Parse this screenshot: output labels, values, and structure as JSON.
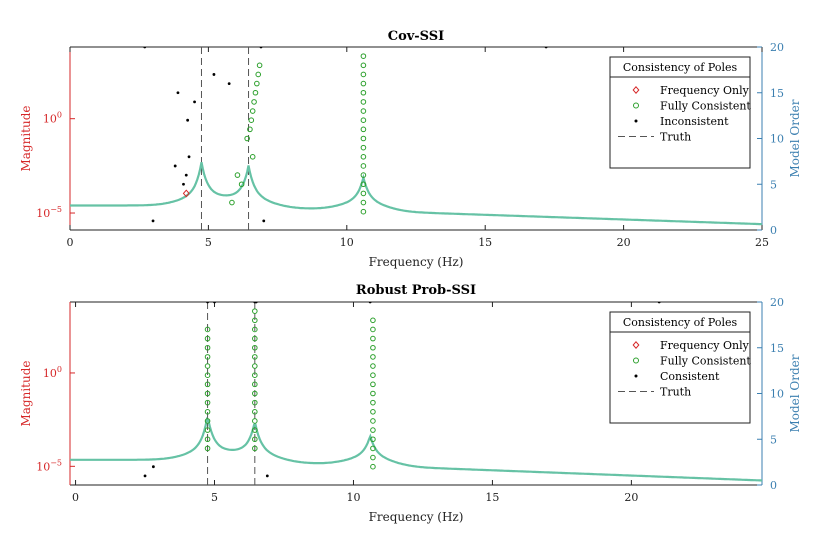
{
  "colors": {
    "left_axis": "#d62728",
    "right_axis": "#3b7fb0",
    "curve": "#66c2a5",
    "freq_only": "#d62728",
    "fully_consistent": "#2ca02c",
    "points": "#000000",
    "truth": "#555555"
  },
  "chart_data": [
    {
      "type": "scatter",
      "title": "Cov-SSI",
      "xlabel": "Frequency (Hz)",
      "ylabel_left": "Magnitude",
      "ylabel_right": "Model Order",
      "xlim": [
        0,
        25
      ],
      "ylim_right": [
        0,
        20
      ],
      "x_ticks": [
        "0",
        "5",
        "10",
        "15",
        "20",
        "25"
      ],
      "x_tick_values": [
        0,
        5,
        10,
        15,
        20,
        25
      ],
      "right_ticks": [
        "0",
        "5",
        "10",
        "15",
        "20"
      ],
      "right_tick_values": [
        0,
        5,
        10,
        15,
        20
      ],
      "left_ticks": [
        {
          "base": "10",
          "exp": "0",
          "log": 0
        },
        {
          "base": "10",
          "exp": "−5",
          "log": -5
        }
      ],
      "ylim_left_log": [
        -5.9,
        3.8
      ],
      "truth_freqs": [
        4.75,
        6.45
      ],
      "magnitude_curve": {
        "baseline_log": -4.6,
        "tail_log": -5.7,
        "peaks": [
          [
            4.75,
            -2.8
          ],
          [
            6.45,
            -2.9
          ],
          [
            10.6,
            -3.3
          ]
        ]
      },
      "legend": {
        "title": "Consistency of Poles",
        "entries": [
          "Frequency Only",
          "Fully Consistent",
          "Inconsistent",
          "Truth"
        ]
      },
      "series": [
        {
          "name": "Frequency Only",
          "marker": "diamond",
          "points": [
            [
              4.2,
              4
            ]
          ]
        },
        {
          "name": "Fully Consistent",
          "marker": "circle",
          "points": [
            [
              5.85,
              3
            ],
            [
              6.05,
              6
            ],
            [
              6.2,
              5
            ],
            [
              6.4,
              10
            ],
            [
              6.5,
              11
            ],
            [
              6.55,
              12
            ],
            [
              6.6,
              8
            ],
            [
              6.6,
              13
            ],
            [
              6.65,
              14
            ],
            [
              6.7,
              15
            ],
            [
              6.75,
              16
            ],
            [
              6.8,
              17
            ],
            [
              6.85,
              18
            ],
            [
              10.6,
              2
            ],
            [
              10.6,
              3
            ],
            [
              10.6,
              4
            ],
            [
              10.6,
              5
            ],
            [
              10.6,
              6
            ],
            [
              10.6,
              7
            ],
            [
              10.6,
              8
            ],
            [
              10.6,
              9
            ],
            [
              10.6,
              10
            ],
            [
              10.6,
              11
            ],
            [
              10.6,
              12
            ],
            [
              10.6,
              13
            ],
            [
              10.6,
              14
            ],
            [
              10.6,
              15
            ],
            [
              10.6,
              16
            ],
            [
              10.6,
              17
            ],
            [
              10.6,
              18
            ],
            [
              10.6,
              19
            ]
          ]
        },
        {
          "name": "Inconsistent",
          "marker": "dot",
          "points": [
            [
              2.7,
              20
            ],
            [
              3.0,
              1
            ],
            [
              3.8,
              7
            ],
            [
              3.9,
              15
            ],
            [
              4.1,
              5
            ],
            [
              4.2,
              6
            ],
            [
              4.25,
              12
            ],
            [
              4.3,
              8
            ],
            [
              4.5,
              14
            ],
            [
              5.2,
              17
            ],
            [
              5.75,
              16
            ],
            [
              6.9,
              20
            ],
            [
              7.0,
              1
            ],
            [
              17.2,
              20
            ]
          ]
        }
      ]
    },
    {
      "type": "scatter",
      "title": "Robust Prob-SSI",
      "xlabel": "Frequency (Hz)",
      "ylabel_left": "Magnitude",
      "ylabel_right": "Model Order",
      "xlim": [
        -0.2,
        24.7
      ],
      "ylim_right": [
        0,
        20
      ],
      "x_ticks": [
        "0",
        "5",
        "10",
        "15",
        "20"
      ],
      "x_tick_values": [
        0,
        5,
        10,
        15,
        20
      ],
      "right_ticks": [
        "0",
        "5",
        "10",
        "15",
        "20"
      ],
      "right_tick_values": [
        0,
        5,
        10,
        15,
        20
      ],
      "left_ticks": [
        {
          "base": "10",
          "exp": "0",
          "log": 0
        },
        {
          "base": "10",
          "exp": "−5",
          "log": -5
        }
      ],
      "ylim_left_log": [
        -6.0,
        3.8
      ],
      "truth_freqs": [
        4.75,
        6.45
      ],
      "magnitude_curve": {
        "baseline_log": -4.65,
        "tail_log": -5.9,
        "peaks": [
          [
            4.75,
            -2.8
          ],
          [
            6.45,
            -3.0
          ],
          [
            10.6,
            -3.5
          ]
        ]
      },
      "legend": {
        "title": "Consistency of Poles",
        "entries": [
          "Frequency Only",
          "Fully Consistent",
          "Consistent",
          "Truth"
        ]
      },
      "series": [
        {
          "name": "Frequency Only",
          "marker": "diamond",
          "points": []
        },
        {
          "name": "Fully Consistent",
          "marker": "circle",
          "points": [
            [
              4.75,
              4
            ],
            [
              4.75,
              5
            ],
            [
              4.75,
              6
            ],
            [
              4.75,
              7
            ],
            [
              4.75,
              8
            ],
            [
              4.75,
              9
            ],
            [
              4.75,
              10
            ],
            [
              4.75,
              11
            ],
            [
              4.75,
              12
            ],
            [
              4.75,
              13
            ],
            [
              4.75,
              14
            ],
            [
              4.75,
              15
            ],
            [
              4.75,
              16
            ],
            [
              4.75,
              17
            ],
            [
              6.45,
              4
            ],
            [
              6.45,
              5
            ],
            [
              6.45,
              6
            ],
            [
              6.45,
              7
            ],
            [
              6.45,
              8
            ],
            [
              6.45,
              9
            ],
            [
              6.45,
              10
            ],
            [
              6.45,
              11
            ],
            [
              6.45,
              12
            ],
            [
              6.45,
              13
            ],
            [
              6.45,
              14
            ],
            [
              6.45,
              15
            ],
            [
              6.45,
              16
            ],
            [
              6.45,
              17
            ],
            [
              6.45,
              18
            ],
            [
              6.45,
              19
            ],
            [
              10.7,
              2
            ],
            [
              10.7,
              3
            ],
            [
              10.7,
              4
            ],
            [
              10.7,
              5
            ],
            [
              10.7,
              6
            ],
            [
              10.7,
              7
            ],
            [
              10.7,
              8
            ],
            [
              10.7,
              9
            ],
            [
              10.7,
              10
            ],
            [
              10.7,
              11
            ],
            [
              10.7,
              12
            ],
            [
              10.7,
              13
            ],
            [
              10.7,
              14
            ],
            [
              10.7,
              15
            ],
            [
              10.7,
              16
            ],
            [
              10.7,
              17
            ],
            [
              10.7,
              18
            ]
          ]
        },
        {
          "name": "Consistent",
          "marker": "dot",
          "points": [
            [
              2.5,
              1
            ],
            [
              2.8,
              2
            ],
            [
              4.75,
              20
            ],
            [
              5.0,
              20
            ],
            [
              6.45,
              20
            ],
            [
              6.5,
              20
            ],
            [
              6.9,
              1
            ],
            [
              10.6,
              20
            ],
            [
              21.0,
              20
            ]
          ]
        }
      ]
    }
  ]
}
